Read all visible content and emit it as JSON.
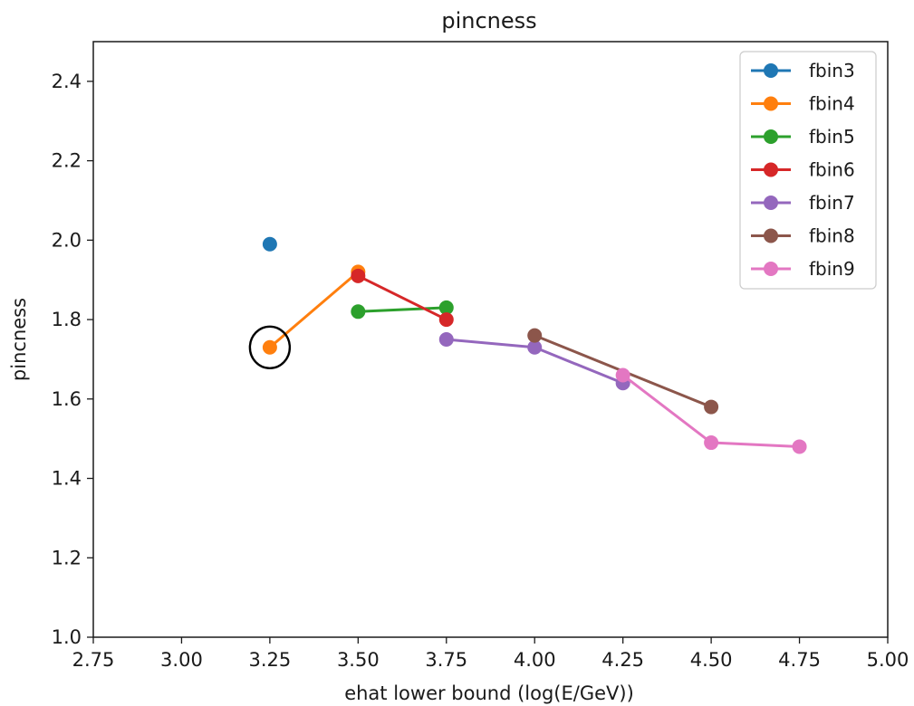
{
  "chart_data": {
    "type": "line",
    "title": "pincness",
    "xlabel": "ehat lower bound (log(E/GeV))",
    "ylabel": "pincness",
    "xlim": [
      2.75,
      5.0
    ],
    "ylim": [
      1.0,
      2.5
    ],
    "xticks": [
      "2.75",
      "3.00",
      "3.25",
      "3.50",
      "3.75",
      "4.00",
      "4.25",
      "4.50",
      "4.75",
      "5.00"
    ],
    "yticks": [
      "1.0",
      "1.2",
      "1.4",
      "1.6",
      "1.8",
      "2.0",
      "2.2",
      "2.4"
    ],
    "grid": false,
    "legend_position": "top-right",
    "series": [
      {
        "name": "fbin3",
        "color": "#1f77b4",
        "x": [
          3.25
        ],
        "y": [
          1.99
        ]
      },
      {
        "name": "fbin4",
        "color": "#ff7f0e",
        "x": [
          3.25,
          3.5
        ],
        "y": [
          1.73,
          1.92
        ]
      },
      {
        "name": "fbin5",
        "color": "#2ca02c",
        "x": [
          3.5,
          3.75
        ],
        "y": [
          1.82,
          1.83
        ]
      },
      {
        "name": "fbin6",
        "color": "#d62728",
        "x": [
          3.5,
          3.75
        ],
        "y": [
          1.91,
          1.8
        ]
      },
      {
        "name": "fbin7",
        "color": "#9467bd",
        "x": [
          3.75,
          4.0,
          4.25
        ],
        "y": [
          1.75,
          1.73,
          1.64
        ]
      },
      {
        "name": "fbin8",
        "color": "#8c564b",
        "x": [
          4.0,
          4.5
        ],
        "y": [
          1.76,
          1.58
        ]
      },
      {
        "name": "fbin9",
        "color": "#e377c2",
        "x": [
          4.25,
          4.5,
          4.75
        ],
        "y": [
          1.66,
          1.49,
          1.48
        ]
      }
    ],
    "annotations": [
      {
        "type": "circle",
        "x": 3.25,
        "y": 1.73
      }
    ]
  }
}
